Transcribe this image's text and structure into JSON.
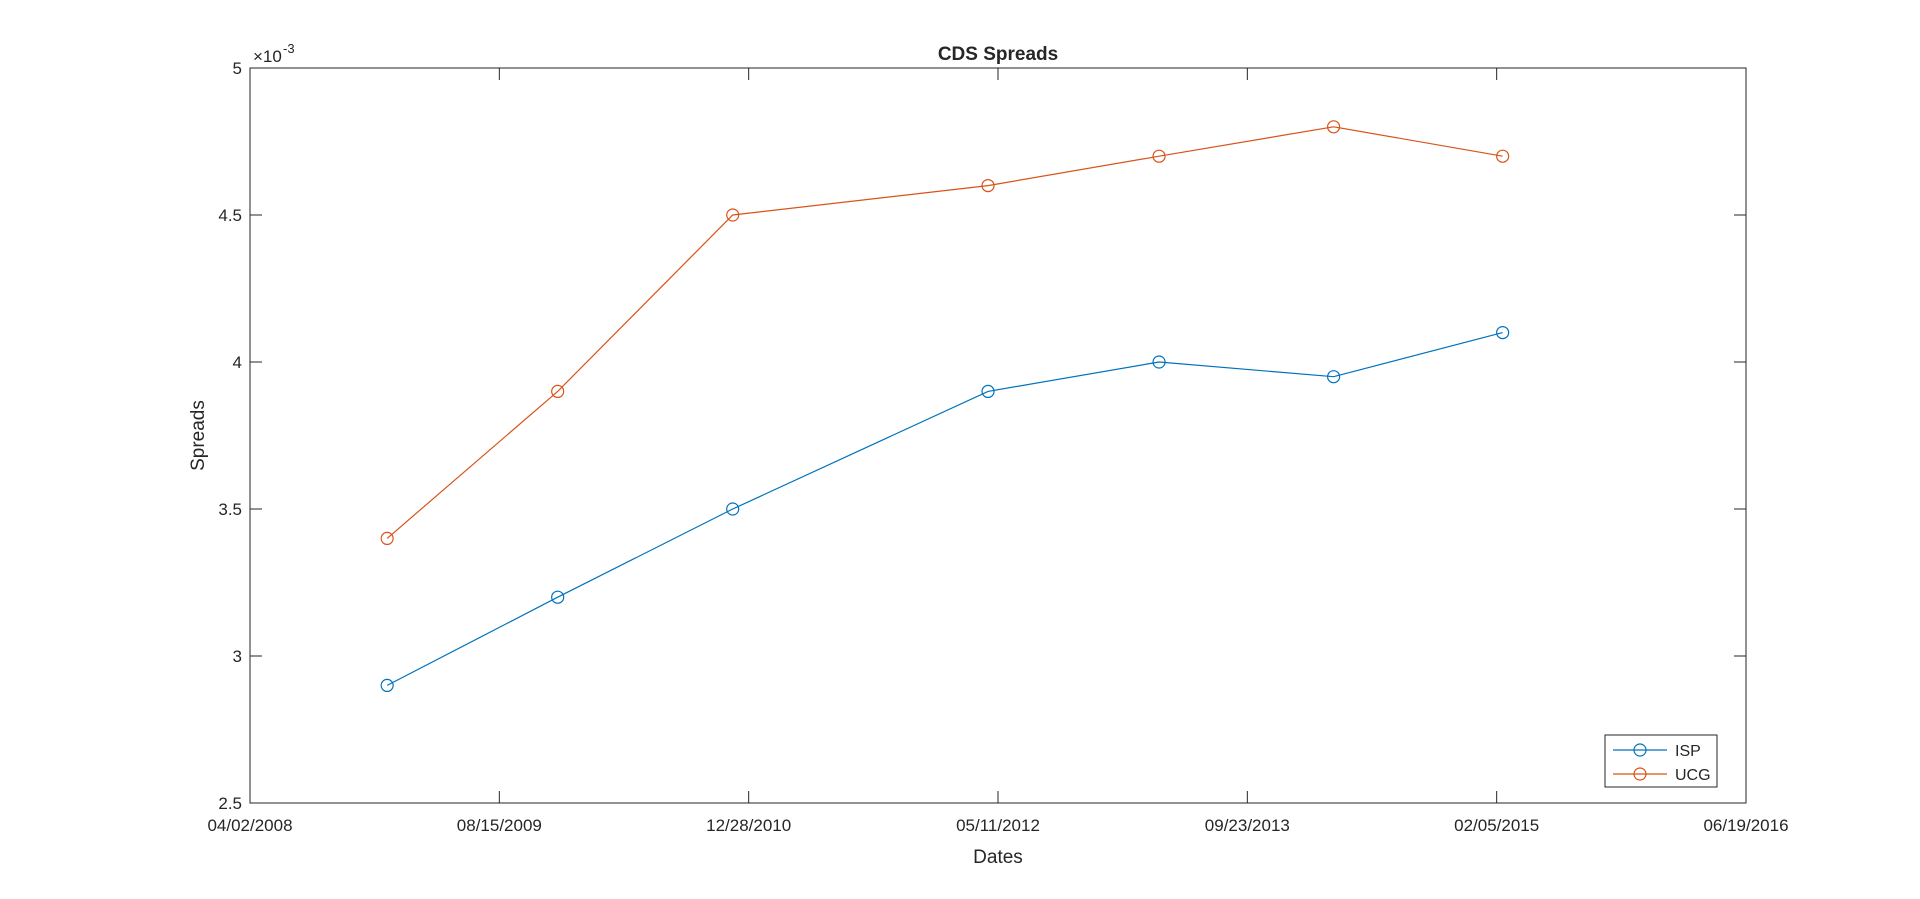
{
  "chart_data": {
    "type": "line",
    "title": "CDS Spreads",
    "xlabel": "Dates",
    "ylabel": "Spreads",
    "y_exponent_label": "×10",
    "y_exponent_power": "-3",
    "x_scale": "date",
    "xlim": [
      "2008-04-02",
      "2016-06-19"
    ],
    "x_ticks": [
      "2008-04-02",
      "2009-08-15",
      "2010-12-28",
      "2012-05-11",
      "2013-09-23",
      "2015-02-05",
      "2016-06-19"
    ],
    "x_tick_labels": [
      "04/02/2008",
      "08/15/2009",
      "12/28/2010",
      "05/11/2012",
      "09/23/2013",
      "02/05/2015",
      "06/19/2016"
    ],
    "ylim": [
      0.0025,
      0.005
    ],
    "y_ticks": [
      0.0025,
      0.003,
      0.0035,
      0.004,
      0.0045,
      0.005
    ],
    "y_tick_labels": [
      "2.5",
      "3",
      "3.5",
      "4",
      "4.5",
      "5"
    ],
    "x": [
      "2009-01-02",
      "2009-12-10",
      "2010-11-26",
      "2012-04-21",
      "2013-03-30",
      "2014-03-15",
      "2015-02-17"
    ],
    "series": [
      {
        "name": "ISP",
        "color": "#0072BD",
        "marker": "circle",
        "values": [
          0.0029,
          0.0032,
          0.0035,
          0.0039,
          0.004,
          0.00395,
          0.0041
        ]
      },
      {
        "name": "UCG",
        "color": "#D95319",
        "marker": "circle",
        "values": [
          0.0034,
          0.0039,
          0.0045,
          0.0046,
          0.0047,
          0.0048,
          0.0047
        ]
      }
    ],
    "grid": false,
    "box": true,
    "legend_position": "bottom-right"
  }
}
